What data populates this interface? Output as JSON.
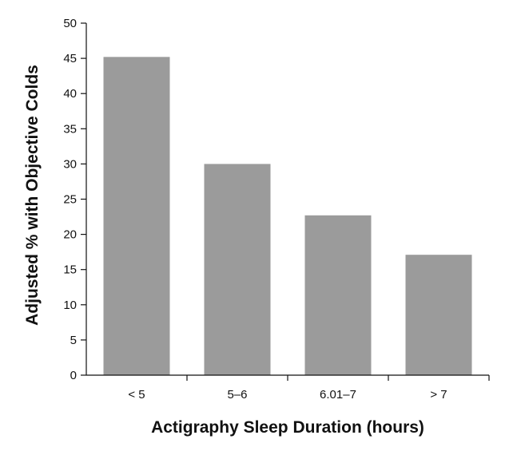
{
  "chart_data": {
    "type": "bar",
    "title": "",
    "xlabel": "Actigraphy Sleep Duration (hours)",
    "ylabel": "Adjusted % with Objective Colds",
    "categories": [
      "< 5",
      "5–6",
      "6.01–7",
      "> 7"
    ],
    "values": [
      45.2,
      30.0,
      22.7,
      17.1
    ],
    "ylim": [
      0,
      50
    ],
    "yticks": [
      0,
      5,
      10,
      15,
      20,
      25,
      30,
      35,
      40,
      45,
      50
    ],
    "grid": false,
    "legend": "none",
    "bar_color": "#9b9b9b",
    "axis_color": "#111111"
  }
}
